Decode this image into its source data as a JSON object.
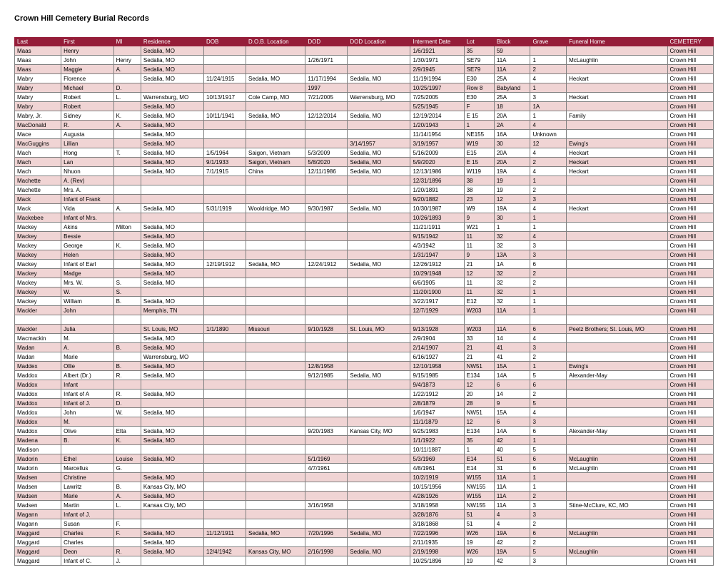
{
  "title": "Crown Hill Cemetery Burial Records",
  "columns": [
    "Last",
    "First",
    "MI",
    "Residence",
    "DOB",
    "D.O.B. Location",
    "DOD",
    "DOD Location",
    "Interment Date",
    "Lot",
    "Block",
    "Grave",
    "Funeral Home",
    "CEMETERY"
  ],
  "rows": [
    [
      "Maas",
      "Henry",
      "",
      "Sedalia, MO",
      "",
      "",
      "",
      "",
      "1/6/1921",
      "35",
      "59",
      "",
      "",
      "Crown Hill"
    ],
    [
      "Maas",
      "John",
      "Henry",
      "Sedalia, MO",
      "",
      "",
      "1/26/1971",
      "",
      "1/30/1971",
      "SE79",
      "11A",
      "1",
      "McLaughlin",
      "Crown Hill"
    ],
    [
      "Maas",
      "Maggie",
      "A.",
      "Sedalia, MO",
      "",
      "",
      "",
      "",
      "2/9/1945",
      "SE79",
      "11A",
      "2",
      "",
      "Crown Hill"
    ],
    [
      "Mabry",
      "Florence",
      "",
      "Sedalia, MO",
      "11/24/1915",
      "Sedalia, MO",
      "11/17/1994",
      "Sedalia, MO",
      "11/19/1994",
      "E30",
      "25A",
      "4",
      "Heckart",
      "Crown Hill"
    ],
    [
      "Mabry",
      "Michael",
      "D.",
      "",
      "",
      "",
      "1997",
      "",
      "10/25/1997",
      "Row 8",
      "Babyland",
      "1",
      "",
      "Crown Hill"
    ],
    [
      "Mabry",
      "Robert",
      "L.",
      "Warrensburg, MO",
      "10/13/1917",
      "Cole Camp, MO",
      "7/21/2005",
      "Warrensburg, MO",
      "7/25/2005",
      "E30",
      "25A",
      "3",
      "Heckart",
      "Crown Hill"
    ],
    [
      "Mabry",
      "Robert",
      "",
      "Sedalia, MO",
      "",
      "",
      "",
      "",
      "5/25/1945",
      "F",
      "18",
      "1A",
      "",
      "Crown Hill"
    ],
    [
      "Mabry, Jr.",
      "Sidney",
      "K.",
      "Sedalia, MO",
      "10/11/1941",
      "Sedalia, MO",
      "12/12/2014",
      "Sedalia, MO",
      "12/19/2014",
      "E 15",
      "20A",
      "1",
      "Family",
      "Crown Hill"
    ],
    [
      "MacDonald",
      "R.",
      "A.",
      "Sedalia, MO",
      "",
      "",
      "",
      "",
      "1/20/1943",
      "1",
      "2A",
      "4",
      "",
      "Crown Hill"
    ],
    [
      "Mace",
      "Augusta",
      "",
      "Sedalia, MO",
      "",
      "",
      "",
      "",
      "11/14/1954",
      "NE155",
      "16A",
      "Unknown",
      "",
      "Crown Hill"
    ],
    [
      "MacGuggins",
      "Lillian",
      "",
      "Sedalia, MO",
      "",
      "",
      "",
      "3/14/1957",
      "3/19/1957",
      "W19",
      "30",
      "12",
      "Ewing's",
      "Crown Hill"
    ],
    [
      "Mach",
      "Hong",
      "T.",
      "Sedalia, MO",
      "1/5/1964",
      "Saigon, Vietnam",
      "5/3/2009",
      "Sedalia, MO",
      "5/16/2009",
      "E15",
      "20A",
      "4",
      "Heckart",
      "Crown Hill"
    ],
    [
      "Mach",
      "Lan",
      "",
      "Sedalia, MO",
      "9/1/1933",
      "Saigon, Vietnam",
      "5/8/2020",
      "Sedalia, MO",
      "5/9/2020",
      "E 15",
      "20A",
      "2",
      "Heckart",
      "Crown Hill"
    ],
    [
      "Mach",
      "Nhuon",
      "",
      "Sedalia, MO",
      "7/1/1915",
      "China",
      "12/11/1986",
      "Sedalia, MO",
      "12/13/1986",
      "W119",
      "19A",
      "4",
      "Heckart",
      "Crown Hill"
    ],
    [
      "Machette",
      "A. (Rev)",
      "",
      "",
      "",
      "",
      "",
      "",
      "12/31/1896",
      "38",
      "19",
      "1",
      "",
      "Crown Hill"
    ],
    [
      "Machette",
      "Mrs. A.",
      "",
      "",
      "",
      "",
      "",
      "",
      "1/20/1891",
      "38",
      "19",
      "2",
      "",
      "Crown Hill"
    ],
    [
      "Mack",
      "Infant of Frank",
      "",
      "",
      "",
      "",
      "",
      "",
      "9/20/1882",
      "23",
      "12",
      "3",
      "",
      "Crown Hill"
    ],
    [
      "Mack",
      "Vida",
      "A.",
      "Sedalia, MO",
      "5/31/1919",
      "Wooldridge, MO",
      "9/30/1987",
      "Sedalia, MO",
      "10/30/1987",
      "W9",
      "19A",
      "4",
      "Heckart",
      "Crown Hill"
    ],
    [
      "Mackebee",
      "Infant of Mrs.",
      "",
      "",
      "",
      "",
      "",
      "",
      "10/26/1893",
      "9",
      "30",
      "1",
      "",
      "Crown Hill"
    ],
    [
      "Mackey",
      "Akins",
      "Milton",
      "Sedalia, MO",
      "",
      "",
      "",
      "",
      "11/21/1911",
      "W21",
      "1",
      "1",
      "",
      "Crown Hill"
    ],
    [
      "Mackey",
      "Bessie",
      "",
      "Sedalia, MO",
      "",
      "",
      "",
      "",
      "9/15/1942",
      "11",
      "32",
      "4",
      "",
      "Crown Hill"
    ],
    [
      "Mackey",
      "George",
      "K.",
      "Sedalia, MO",
      "",
      "",
      "",
      "",
      "4/3/1942",
      "11",
      "32",
      "3",
      "",
      "Crown Hill"
    ],
    [
      "Mackey",
      "Helen",
      "",
      "Sedalia, MO",
      "",
      "",
      "",
      "",
      "1/31/1947",
      "9",
      "13A",
      "3",
      "",
      "Crown Hill"
    ],
    [
      "Mackey",
      "Infant of Earl",
      "",
      "Sedalia, MO",
      "12/19/1912",
      "Sedalia, MO",
      "12/24/1912",
      "Sedalia, MO",
      "12/26/1912",
      "21",
      "1A",
      "6",
      "",
      "Crown Hill"
    ],
    [
      "Mackey",
      "Madge",
      "",
      "Sedalia, MO",
      "",
      "",
      "",
      "",
      "10/29/1948",
      "12",
      "32",
      "2",
      "",
      "Crown Hill"
    ],
    [
      "Mackey",
      "Mrs. W.",
      "S.",
      "Sedalia, MO",
      "",
      "",
      "",
      "",
      "6/6/1905",
      "11",
      "32",
      "2",
      "",
      "Crown Hill"
    ],
    [
      "Mackey",
      "W.",
      "S.",
      "",
      "",
      "",
      "",
      "",
      "11/20/1900",
      "11",
      "32",
      "1",
      "",
      "Crown Hill"
    ],
    [
      "Mackey",
      "William",
      "B.",
      "Sedalia, MO",
      "",
      "",
      "",
      "",
      "3/22/1917",
      "E12",
      "32",
      "1",
      "",
      "Crown Hill"
    ],
    [
      "Mackler",
      "John",
      "",
      "Memphis, TN",
      "",
      "",
      "",
      "",
      "12/7/1929",
      "W203",
      "11A",
      "1",
      "",
      "Crown Hill"
    ],
    [
      "",
      "",
      "",
      "",
      "",
      "",
      "",
      "",
      "",
      "",
      "",
      "",
      "",
      ""
    ],
    [
      "Mackler",
      "Julia",
      "",
      "St. Louis, MO",
      "1/1/1890",
      "Missouri",
      "9/10/1928",
      "St. Louis, MO",
      "9/13/1928",
      "W203",
      "11A",
      "6",
      "Peetz Brothers; St. Louis, MO",
      "Crown Hill"
    ],
    [
      "Macmackin",
      "M.",
      "",
      "Sedalia, MO",
      "",
      "",
      "",
      "",
      "2/9/1904",
      "33",
      "14",
      "4",
      "",
      "Crown Hill"
    ],
    [
      "Madan",
      "A.",
      "B.",
      "Sedalia, MO",
      "",
      "",
      "",
      "",
      "2/14/1907",
      "21",
      "41",
      "3",
      "",
      "Crown Hill"
    ],
    [
      "Madan",
      "Marie",
      "",
      "Warrensburg, MO",
      "",
      "",
      "",
      "",
      "6/16/1927",
      "21",
      "41",
      "2",
      "",
      "Crown Hill"
    ],
    [
      "Maddex",
      "Ollie",
      "B.",
      "Sedalia, MO",
      "",
      "",
      "12/8/1958",
      "",
      "12/10/1958",
      "NW51",
      "15A",
      "1",
      "Ewing's",
      "Crown Hill"
    ],
    [
      "Maddox",
      "Albert (Dr.)",
      "R.",
      "Sedalia, MO",
      "",
      "",
      "9/12/1985",
      "Sedalia, MO",
      "9/15/1985",
      "E134",
      "14A",
      "5",
      "Alexander-May",
      "Crown Hill"
    ],
    [
      "Maddox",
      "Infant",
      "",
      "",
      "",
      "",
      "",
      "",
      "9/4/1873",
      "12",
      "6",
      "6",
      "",
      "Crown Hill"
    ],
    [
      "Maddox",
      "Infant of A",
      "R.",
      "Sedalia, MO",
      "",
      "",
      "",
      "",
      "1/22/1912",
      "20",
      "14",
      "2",
      "",
      "Crown Hill"
    ],
    [
      "Maddox",
      "Infant of J.",
      "D.",
      "",
      "",
      "",
      "",
      "",
      "2/8/1879",
      "28",
      "9",
      "5",
      "",
      "Crown Hill"
    ],
    [
      "Maddox",
      "John",
      "W.",
      "Sedalia, MO",
      "",
      "",
      "",
      "",
      "1/6/1947",
      "NW51",
      "15A",
      "4",
      "",
      "Crown Hill"
    ],
    [
      "Maddox",
      "M.",
      "",
      "",
      "",
      "",
      "",
      "",
      "11/1/1879",
      "12",
      "6",
      "3",
      "",
      "Crown Hill"
    ],
    [
      "Maddox",
      "Olive",
      "Etta",
      "Sedalia, MO",
      "",
      "",
      "9/20/1983",
      "Kansas City, MO",
      "9/25/1983",
      "E134",
      "14A",
      "6",
      "Alexander-May",
      "Crown Hill"
    ],
    [
      "Madena",
      "B.",
      "K.",
      "Sedalia, MO",
      "",
      "",
      "",
      "",
      "1/1/1922",
      "35",
      "42",
      "1",
      "",
      "Crown Hill"
    ],
    [
      "Madison",
      "",
      "",
      "",
      "",
      "",
      "",
      "",
      "10/11/1887",
      "1",
      "40",
      "5",
      "",
      "Crown Hill"
    ],
    [
      "Madorin",
      "Ethel",
      "Louise",
      "Sedalia, MO",
      "",
      "",
      "5/1/1969",
      "",
      "5/3/1969",
      "E14",
      "51",
      "6",
      "McLaughlin",
      "Crown Hill"
    ],
    [
      "Madorin",
      "Marcellus",
      "G.",
      "",
      "",
      "",
      "4/7/1961",
      "",
      "4/8/1961",
      "E14",
      "31",
      "6",
      "McLaughlin",
      "Crown Hill"
    ],
    [
      "Madsen",
      "Christine",
      "",
      "Sedalia, MO",
      "",
      "",
      "",
      "",
      "10/2/1919",
      "W155",
      "11A",
      "1",
      "",
      "Crown Hill"
    ],
    [
      "Madsen",
      "Lawritz",
      "B.",
      "Kansas City, MO",
      "",
      "",
      "",
      "",
      "10/15/1956",
      "NW155",
      "11A",
      "1",
      "",
      "Crown Hill"
    ],
    [
      "Madsen",
      "Marie",
      "A.",
      "Sedalia, MO",
      "",
      "",
      "",
      "",
      "4/28/1926",
      "W155",
      "11A",
      "2",
      "",
      "Crown Hill"
    ],
    [
      "Madsen",
      "Martin",
      "L.",
      "Kansas City, MO",
      "",
      "",
      "3/16/1958",
      "",
      "3/18/1958",
      "NW155",
      "11A",
      "3",
      "Stine-McClure, KC, MO",
      "Crown Hill"
    ],
    [
      "Magann",
      "Infant of J.",
      "",
      "",
      "",
      "",
      "",
      "",
      "3/28/1876",
      "51",
      "4",
      "3",
      "",
      "Crown Hill"
    ],
    [
      "Magann",
      "Susan",
      "F.",
      "",
      "",
      "",
      "",
      "",
      "3/18/1868",
      "51",
      "4",
      "2",
      "",
      "Crown Hill"
    ],
    [
      "Maggard",
      "Charles",
      "F.",
      "Sedalia, MO",
      "11/12/1911",
      "Sedalia, MO",
      "7/20/1996",
      "Sedalia, MO",
      "7/22/1996",
      "W26",
      "19A",
      "6",
      "McLaughlin",
      "Crown Hill"
    ],
    [
      "Maggard",
      "Charles",
      "",
      "Sedalia, MO",
      "",
      "",
      "",
      "",
      "2/11/1935",
      "19",
      "42",
      "2",
      "",
      "Crown Hill"
    ],
    [
      "Maggard",
      "Deon",
      "R.",
      "Sedalia, MO",
      "12/4/1942",
      "Kansas City, MO",
      "2/16/1998",
      "Sedalia, MO",
      "2/19/1998",
      "W26",
      "19A",
      "5",
      "McLaughlin",
      "Crown Hill"
    ],
    [
      "Maggard",
      "Infant of C.",
      "J.",
      "",
      "",
      "",
      "",
      "",
      "10/25/1896",
      "19",
      "42",
      "3",
      "",
      "Crown Hill"
    ]
  ]
}
